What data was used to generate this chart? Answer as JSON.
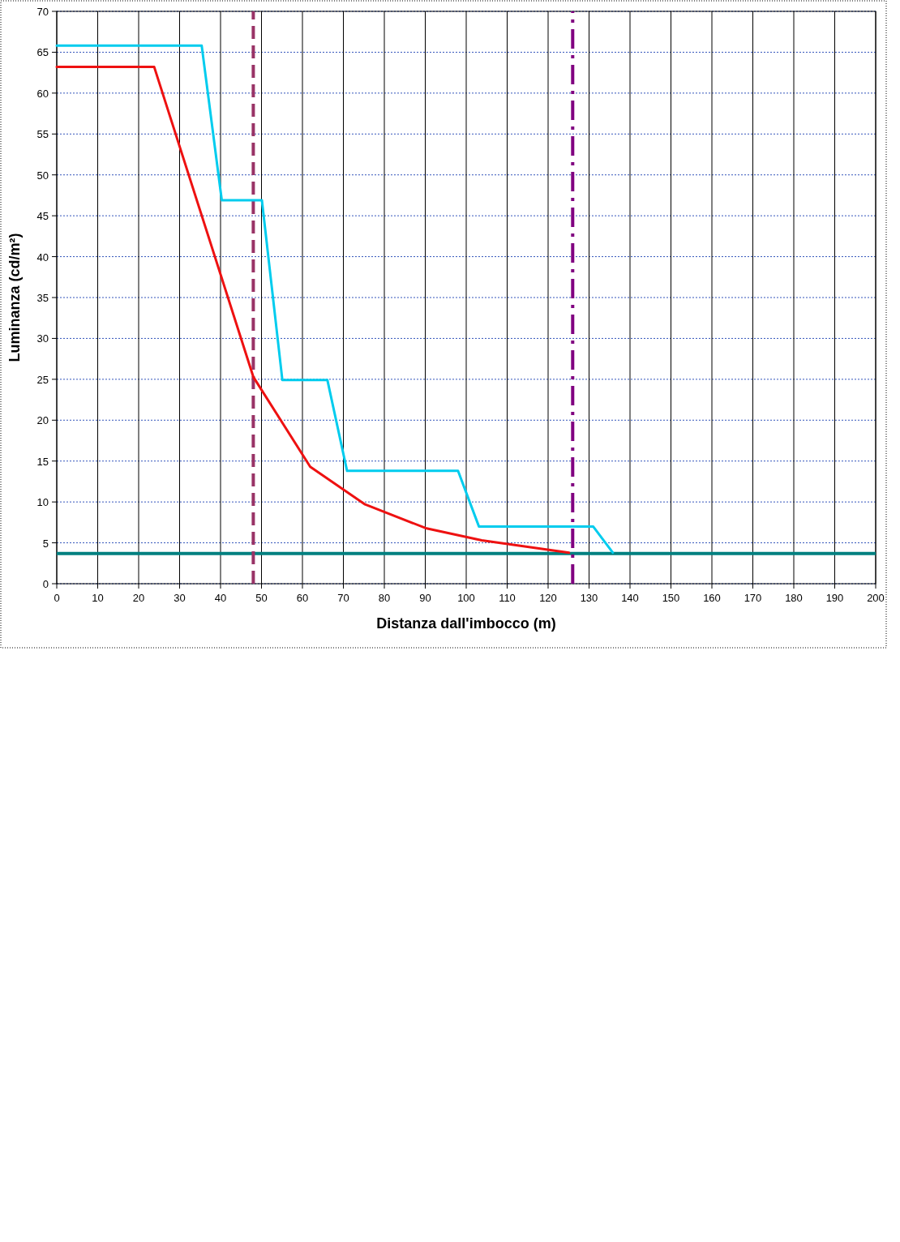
{
  "chart_data": {
    "type": "line",
    "xlabel": "Distanza dall'imbocco (m)",
    "ylabel": "Luminanza (cd/m²)",
    "xlim": [
      0,
      200
    ],
    "xticks": [
      0,
      10,
      20,
      30,
      40,
      50,
      60,
      70,
      80,
      90,
      100,
      110,
      120,
      130,
      140,
      150,
      160,
      170,
      180,
      190,
      200
    ],
    "ylim": [
      0,
      70
    ],
    "yticks": [
      0,
      5,
      10,
      15,
      20,
      25,
      30,
      35,
      40,
      45,
      50,
      55,
      60,
      65,
      70
    ],
    "grid": true,
    "marker": "none",
    "line_style": "solid",
    "series": [
      {
        "color": "#00ccee",
        "x": [
          0,
          35.4,
          40.3,
          50.1,
          55.1,
          66.1,
          70.9,
          98,
          103.1,
          131,
          135.8
        ],
        "values": [
          65.8,
          65.8,
          46.9,
          46.9,
          24.9,
          24.9,
          13.8,
          13.8,
          7,
          7,
          3.8
        ]
      },
      {
        "color": "#ee1111",
        "x": [
          0,
          23.8,
          48,
          61.9,
          75.3,
          90.1,
          103.8,
          125.1
        ],
        "values": [
          63.2,
          63.2,
          25.3,
          14.3,
          9.7,
          6.8,
          5.3,
          3.8
        ]
      }
    ],
    "ref_lines": [
      {
        "axis": "y",
        "value": 3.7,
        "color": "#008080",
        "line_style": "solid"
      },
      {
        "axis": "x",
        "value": 48,
        "color": "#993366",
        "line_style": "dashed"
      },
      {
        "axis": "x",
        "value": 126,
        "color": "#800080",
        "line_style": "dashdot"
      }
    ]
  }
}
